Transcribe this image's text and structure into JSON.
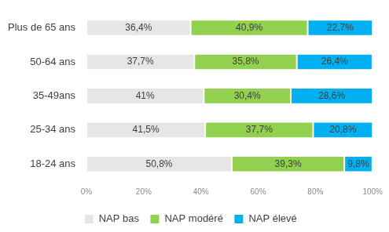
{
  "chart_data": {
    "type": "bar",
    "orientation": "horizontal",
    "stacked": true,
    "data_labels": true,
    "grid": false,
    "legend": "bottom",
    "categories": [
      "Plus de 65 ans",
      "50-64 ans",
      "35-49ans",
      "25-34 ans",
      "18-24 ans"
    ],
    "series": [
      {
        "name": "NAP bas",
        "color": "#e7e6e6",
        "values": [
          36.4,
          37.7,
          41,
          41.5,
          50.8
        ],
        "value_labels": [
          "36,4%",
          "37,7%",
          "41%",
          "41,5%",
          "50,8%"
        ]
      },
      {
        "name": "NAP modéré",
        "color": "#92d050",
        "values": [
          40.9,
          35.8,
          30.4,
          37.7,
          39.3
        ],
        "value_labels": [
          "40,9%",
          "35,8%",
          "30,4%",
          "37,7%",
          "39,3%"
        ]
      },
      {
        "name": "NAP élevé",
        "color": "#00b0f0",
        "values": [
          22.7,
          26.4,
          28.6,
          20.8,
          9.8
        ],
        "value_labels": [
          "22,7%",
          "26,4%",
          "28,6%",
          "20,8%",
          "9,8%"
        ]
      }
    ],
    "xlim": [
      0,
      100
    ],
    "xticks": [
      {
        "value": 0,
        "label": "0%"
      },
      {
        "value": 20,
        "label": "20%"
      },
      {
        "value": 40,
        "label": "40%"
      },
      {
        "value": 60,
        "label": "60%"
      },
      {
        "value": 80,
        "label": "80%"
      },
      {
        "value": 100,
        "label": "100%"
      }
    ]
  }
}
